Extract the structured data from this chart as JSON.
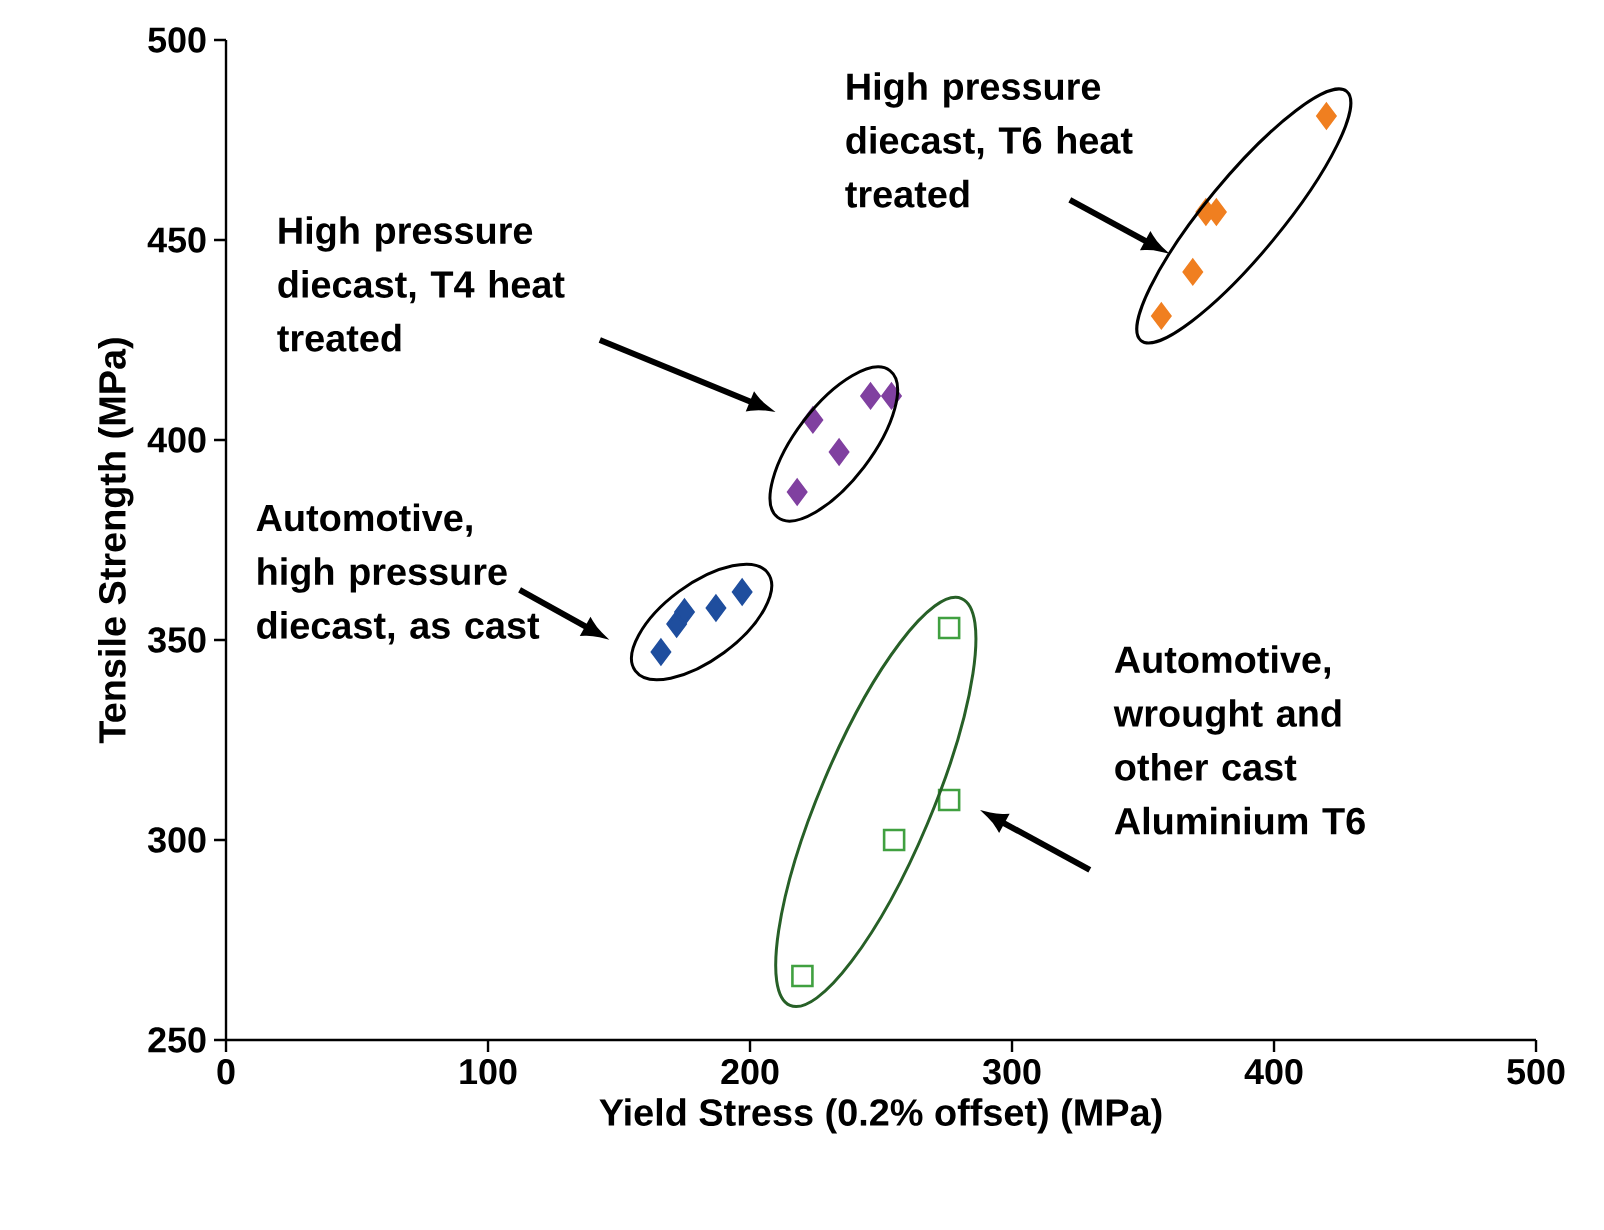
{
  "chart_data": {
    "type": "scatter",
    "xlabel": "Yield Stress (0.2% offset) (MPa)",
    "ylabel": "Tensile Strength (MPa)",
    "xlim": [
      0,
      500
    ],
    "xticks": [
      0,
      100,
      200,
      300,
      400,
      500
    ],
    "ylim": [
      250,
      500
    ],
    "yticks": [
      250,
      300,
      350,
      400,
      450,
      500
    ],
    "series": [
      {
        "color": "#1f4e9e",
        "marker": "diamond",
        "x": [
          166,
          172,
          175,
          187,
          197
        ],
        "values": [
          347,
          354,
          357,
          358,
          362
        ]
      },
      {
        "color": "#8040a0",
        "marker": "diamond",
        "x": [
          218,
          224,
          234,
          246,
          254
        ],
        "values": [
          387,
          405,
          397,
          411,
          411
        ]
      },
      {
        "color": "#f07f20",
        "marker": "diamond",
        "x": [
          357,
          369,
          374,
          378,
          420
        ],
        "values": [
          431,
          442,
          457,
          457,
          481
        ]
      },
      {
        "color": "#40a040",
        "marker": "square",
        "x": [
          220,
          255,
          276,
          276
        ],
        "values": [
          266,
          300,
          310,
          353
        ]
      }
    ],
    "annotations": [
      "Automotive, high pressure diecast, as cast",
      "High pressure diecast, T4 heat treated",
      "High pressure diecast, T6 heat treated",
      "Automotive, wrought and other cast Aluminium T6"
    ]
  }
}
